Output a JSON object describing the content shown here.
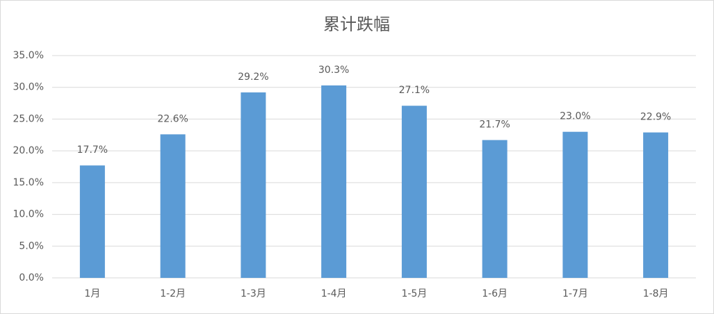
{
  "chart_data": {
    "type": "bar",
    "title": "累计跌幅",
    "categories": [
      "1月",
      "1-2月",
      "1-3月",
      "1-4月",
      "1-5月",
      "1-6月",
      "1-7月",
      "1-8月"
    ],
    "values": [
      17.7,
      22.6,
      29.2,
      30.3,
      27.1,
      21.7,
      23.0,
      22.9
    ],
    "value_labels": [
      "17.7%",
      "22.6%",
      "29.2%",
      "30.3%",
      "27.1%",
      "21.7%",
      "23.0%",
      "22.9%"
    ],
    "color": "#5b9bd5",
    "ylim": [
      0,
      35
    ],
    "yticks": [
      {
        "value": 0,
        "label": "0.0%"
      },
      {
        "value": 5,
        "label": "5.0%"
      },
      {
        "value": 10,
        "label": "10.0%"
      },
      {
        "value": 15,
        "label": "15.0%"
      },
      {
        "value": 20,
        "label": "20.0%"
      },
      {
        "value": 25,
        "label": "25.0%"
      },
      {
        "value": 30,
        "label": "30.0%"
      },
      {
        "value": 35,
        "label": "35.0%"
      }
    ],
    "grid": true
  }
}
